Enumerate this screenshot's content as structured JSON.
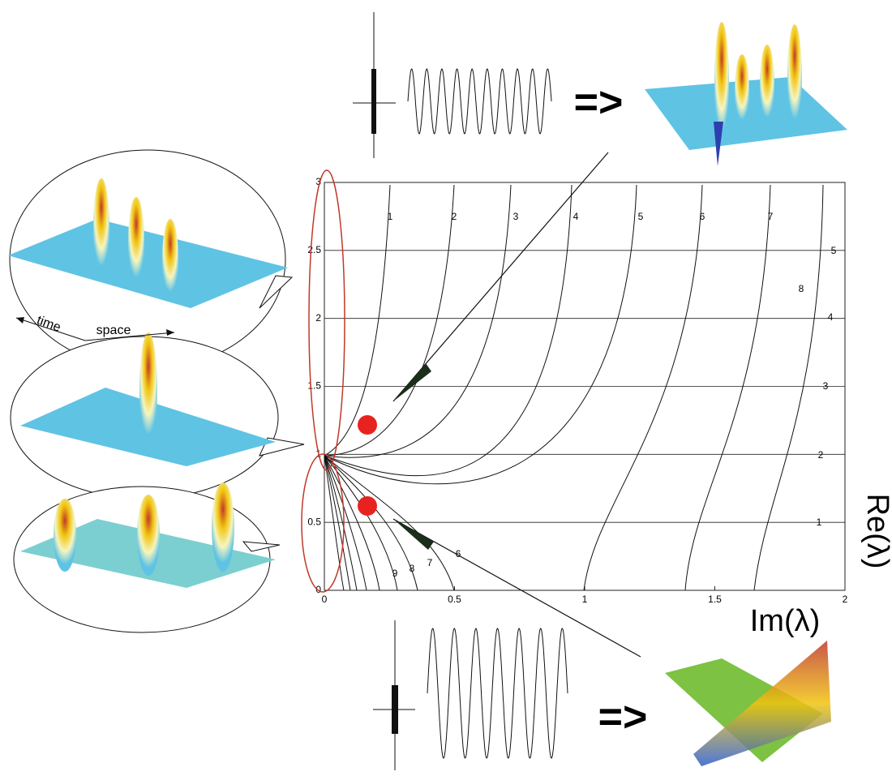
{
  "plot": {
    "xlim": [
      0,
      2
    ],
    "ylim": [
      0,
      3
    ],
    "xticks": [
      0,
      0.5,
      1,
      1.5,
      2
    ],
    "yticks": [
      0,
      0.5,
      1,
      1.5,
      2,
      2.5,
      3
    ],
    "x_label": "Im(λ)",
    "y_label": "Re(λ)",
    "upper_curve_labels": [
      "1",
      "2",
      "3",
      "4",
      "5",
      "6",
      "7",
      "8"
    ],
    "right_curve_labels": [
      "1",
      "2",
      "3",
      "4",
      "5"
    ],
    "lower_curve_labels": [
      "6",
      "7",
      "8",
      "9"
    ]
  },
  "annotations": {
    "time": "time",
    "space": "space",
    "arrow_top": "=>",
    "arrow_bottom": "=>"
  }
}
